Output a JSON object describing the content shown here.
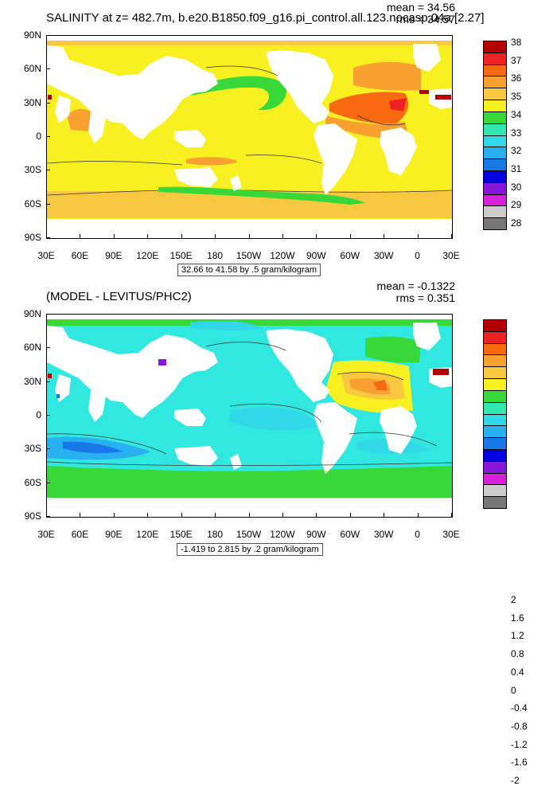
{
  "panels": [
    {
      "title": "SALINITY at z= 482.7m, b.e20.B1850.f09_g16.pi_control.all.123.nocasp.04a [2.27]",
      "stats": [
        "mean = 34.56",
        "rms = 34.57"
      ],
      "caption": "32.66 to 41.58 by .5 gram/kilogram",
      "colorbar": {
        "labels": [
          "38",
          "37",
          "36",
          "35",
          "34",
          "33",
          "32",
          "31",
          "30",
          "29",
          "28"
        ],
        "colors": [
          "#b40000",
          "#ee2222",
          "#f86a10",
          "#f8a030",
          "#f8c840",
          "#f8f020",
          "#38d838",
          "#30e8b0",
          "#30d8e8",
          "#28b0f0",
          "#1878e8",
          "#0000e0",
          "#8818d8",
          "#d820d8",
          "#cccccc",
          "#777777"
        ]
      },
      "regions": [
        {
          "name": "tropical-pacific",
          "color": "#f8f020"
        },
        {
          "name": "north-atlantic",
          "color": "#f86a10"
        },
        {
          "name": "subtropical-north-atlantic",
          "color": "#f8a030"
        },
        {
          "name": "southern-ocean",
          "color": "#f8c840"
        },
        {
          "name": "antarctic-circumpolar-band",
          "color": "#38d838"
        },
        {
          "name": "north-pacific-green",
          "color": "#38d838"
        },
        {
          "name": "mediterranean-outflow",
          "color": "#ee2222"
        }
      ]
    },
    {
      "title": "(MODEL - LEVITUS/PHC2)",
      "stats": [
        "mean = -0.1322",
        "rms = 0.351"
      ],
      "caption": "-1.419 to 2.815 by .2 gram/kilogram",
      "colorbar": {
        "labels": [
          "2",
          "1.6",
          "1.2",
          "0.8",
          "0.4",
          "0",
          "-0.4",
          "-0.8",
          "-1.2",
          "-1.6",
          "-2"
        ],
        "colors": [
          "#b40000",
          "#ee2222",
          "#f86a10",
          "#f8a030",
          "#f8c840",
          "#f8f020",
          "#38d838",
          "#30e8b0",
          "#30d8e8",
          "#28b0f0",
          "#1878e8",
          "#0000e0",
          "#8818d8",
          "#d820d8",
          "#cccccc",
          "#777777"
        ]
      },
      "regions": [
        {
          "name": "arctic-band",
          "color": "#38d838"
        },
        {
          "name": "pacific-cyan",
          "color": "#30e8e0"
        },
        {
          "name": "southern-indian-blue",
          "color": "#28b0f0"
        },
        {
          "name": "southern-ocean-green",
          "color": "#38d838"
        },
        {
          "name": "north-atlantic-warm",
          "color": "#f8a030"
        }
      ]
    }
  ],
  "axes": {
    "lat_labels": [
      "90N",
      "60N",
      "30N",
      "0",
      "30S",
      "60S",
      "90S"
    ],
    "lon_labels": [
      "30E",
      "60E",
      "90E",
      "120E",
      "150E",
      "180",
      "150W",
      "120W",
      "90W",
      "60W",
      "30W",
      "0",
      "30E"
    ]
  }
}
